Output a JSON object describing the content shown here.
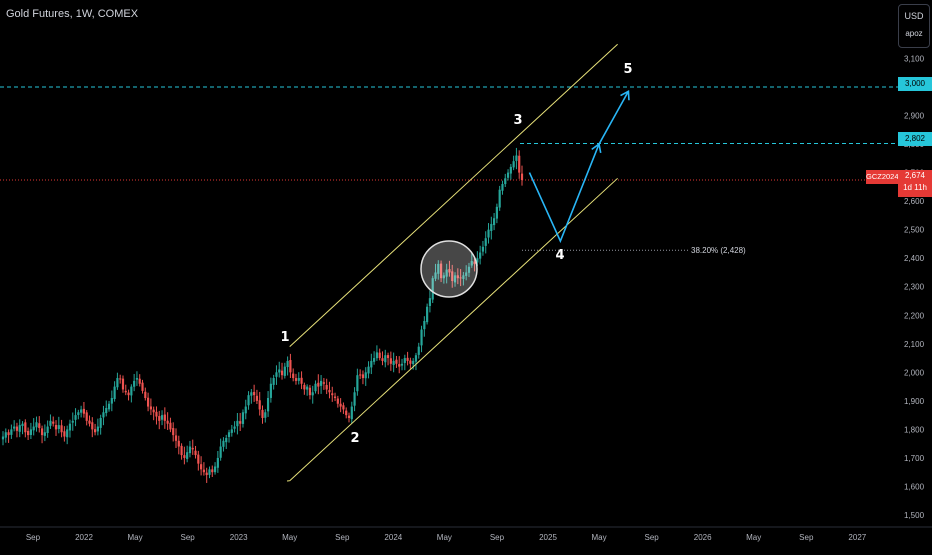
{
  "header": {
    "title": "Gold Futures, 1W, COMEX",
    "currency": "USD",
    "scale_label": "apoz"
  },
  "badges": {
    "level_3000": "3,000",
    "level_2802": "2,802",
    "symbol": "GCZ2024",
    "current_price": "2,674",
    "countdown": "1d 11h"
  },
  "colors": {
    "background": "#000000",
    "up_candle": "#26a69a",
    "down_candle": "#ef5350",
    "channel": "#e8e27a",
    "projection": "#29b6f6",
    "target_line": "#26c6da",
    "price_line": "#e53935"
  },
  "chart_data": {
    "type": "candlestick",
    "title": "Gold Futures, 1W, COMEX",
    "ylim": [
      1480,
      3120
    ],
    "y_ticks": [
      "1,500",
      "1,600",
      "1,700",
      "1,800",
      "1,900",
      "2,000",
      "2,100",
      "2,200",
      "2,300",
      "2,400",
      "2,500",
      "2,600",
      "2,700",
      "2,800",
      "2,900",
      "3,000",
      "3,100"
    ],
    "x_ticks": [
      "Sep",
      "2022",
      "May",
      "Sep",
      "2023",
      "May",
      "Sep",
      "2024",
      "May",
      "Sep",
      "2025",
      "May",
      "Sep",
      "2026",
      "May",
      "Sep",
      "2027"
    ],
    "weekly_closes": [
      1775,
      1790,
      1780,
      1800,
      1810,
      1795,
      1815,
      1820,
      1790,
      1780,
      1800,
      1810,
      1825,
      1805,
      1780,
      1790,
      1810,
      1830,
      1820,
      1800,
      1815,
      1790,
      1775,
      1800,
      1820,
      1830,
      1850,
      1860,
      1870,
      1855,
      1830,
      1820,
      1800,
      1790,
      1810,
      1840,
      1860,
      1875,
      1890,
      1910,
      1950,
      1980,
      1975,
      1940,
      1930,
      1920,
      1950,
      1970,
      1980,
      1960,
      1935,
      1910,
      1880,
      1870,
      1860,
      1845,
      1830,
      1850,
      1830,
      1820,
      1800,
      1780,
      1760,
      1740,
      1710,
      1700,
      1720,
      1740,
      1730,
      1710,
      1680,
      1660,
      1650,
      1640,
      1660,
      1650,
      1670,
      1700,
      1740,
      1760,
      1770,
      1790,
      1800,
      1810,
      1830,
      1820,
      1860,
      1880,
      1920,
      1930,
      1920,
      1900,
      1870,
      1840,
      1860,
      1910,
      1960,
      1980,
      2000,
      2010,
      1990,
      2020,
      2040,
      2000,
      1980,
      1970,
      1980,
      1960,
      1940,
      1950,
      1920,
      1930,
      1960,
      1950,
      1970,
      1960,
      1940,
      1930,
      1920,
      1910,
      1890,
      1880,
      1870,
      1850,
      1840,
      1880,
      1930,
      1990,
      1990,
      1980,
      2000,
      2020,
      2040,
      2050,
      2070,
      2050,
      2040,
      2060,
      2050,
      2030,
      2040,
      2030,
      2020,
      2030,
      2050,
      2040,
      2030,
      2040,
      2060,
      2090,
      2150,
      2180,
      2230,
      2260,
      2330,
      2350,
      2380,
      2330,
      2340,
      2360,
      2350,
      2320,
      2340,
      2330,
      2330,
      2340,
      2350,
      2370,
      2390,
      2380,
      2400,
      2420,
      2440,
      2470,
      2500,
      2520,
      2540,
      2580,
      2640,
      2660,
      2680,
      2700,
      2720,
      2740,
      2760,
      2700,
      2674
    ],
    "series": [
      {
        "name": "Gold Futures",
        "x_range": [
          "2021-08",
          "2024-11"
        ]
      }
    ],
    "annotations": {
      "wave_labels": [
        "1",
        "2",
        "3",
        "4",
        "5"
      ],
      "fib_label": "38.20% (2,428)",
      "channel": {
        "upper": [
          [
            2023.33,
            2090
          ],
          [
            2025.45,
            3150
          ]
        ],
        "lower": [
          [
            2023.33,
            1620
          ],
          [
            2025.45,
            2680
          ]
        ]
      },
      "projection": [
        [
          2024.88,
          2700
        ],
        [
          2025.08,
          2460
        ],
        [
          2025.33,
          2800
        ],
        [
          2025.52,
          2985
        ]
      ],
      "horizontal_levels": [
        3000,
        2802,
        2674,
        2428
      ]
    }
  }
}
